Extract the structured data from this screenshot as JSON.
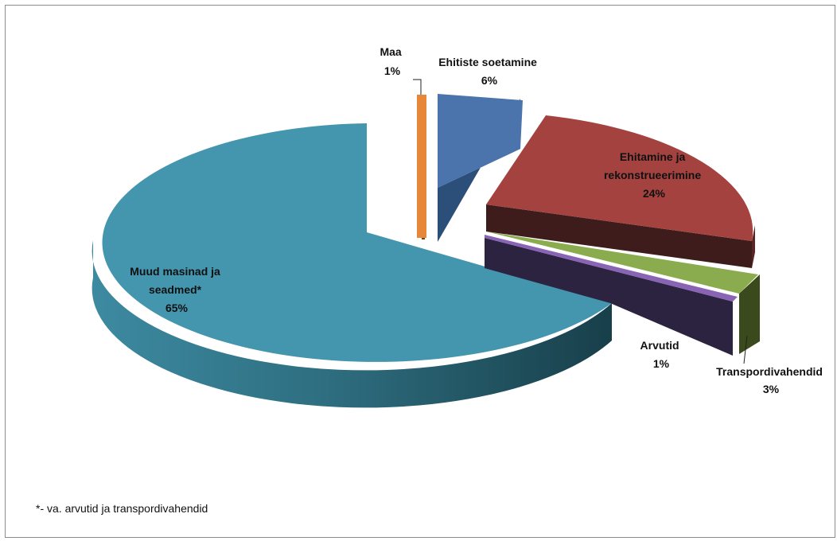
{
  "chart_data": {
    "type": "pie",
    "variant": "3d-exploded",
    "slices": [
      {
        "label_lines": [
          "Ehitiste soetamine"
        ],
        "percent_label": "6%",
        "value": 6,
        "color": "#4a74ab"
      },
      {
        "label_lines": [
          "Ehitamine ja",
          "rekonstrueerimine"
        ],
        "percent_label": "24%",
        "value": 24,
        "color": "#a3423f"
      },
      {
        "label_lines": [
          "Transpordivahendid"
        ],
        "percent_label": "3%",
        "value": 3,
        "color": "#8aab4e"
      },
      {
        "label_lines": [
          "Arvutid"
        ],
        "percent_label": "1%",
        "value": 1,
        "color": "#7a5aa0"
      },
      {
        "label_lines": [
          "Muud masinad ja",
          "seadmed*"
        ],
        "percent_label": "65%",
        "value": 65,
        "color": "#4595ad"
      },
      {
        "label_lines": [
          "Maa"
        ],
        "percent_label": "1%",
        "value": 1,
        "color": "#e7873a"
      }
    ],
    "footnote": "*-  va. arvutid ja transpordivahendid"
  }
}
